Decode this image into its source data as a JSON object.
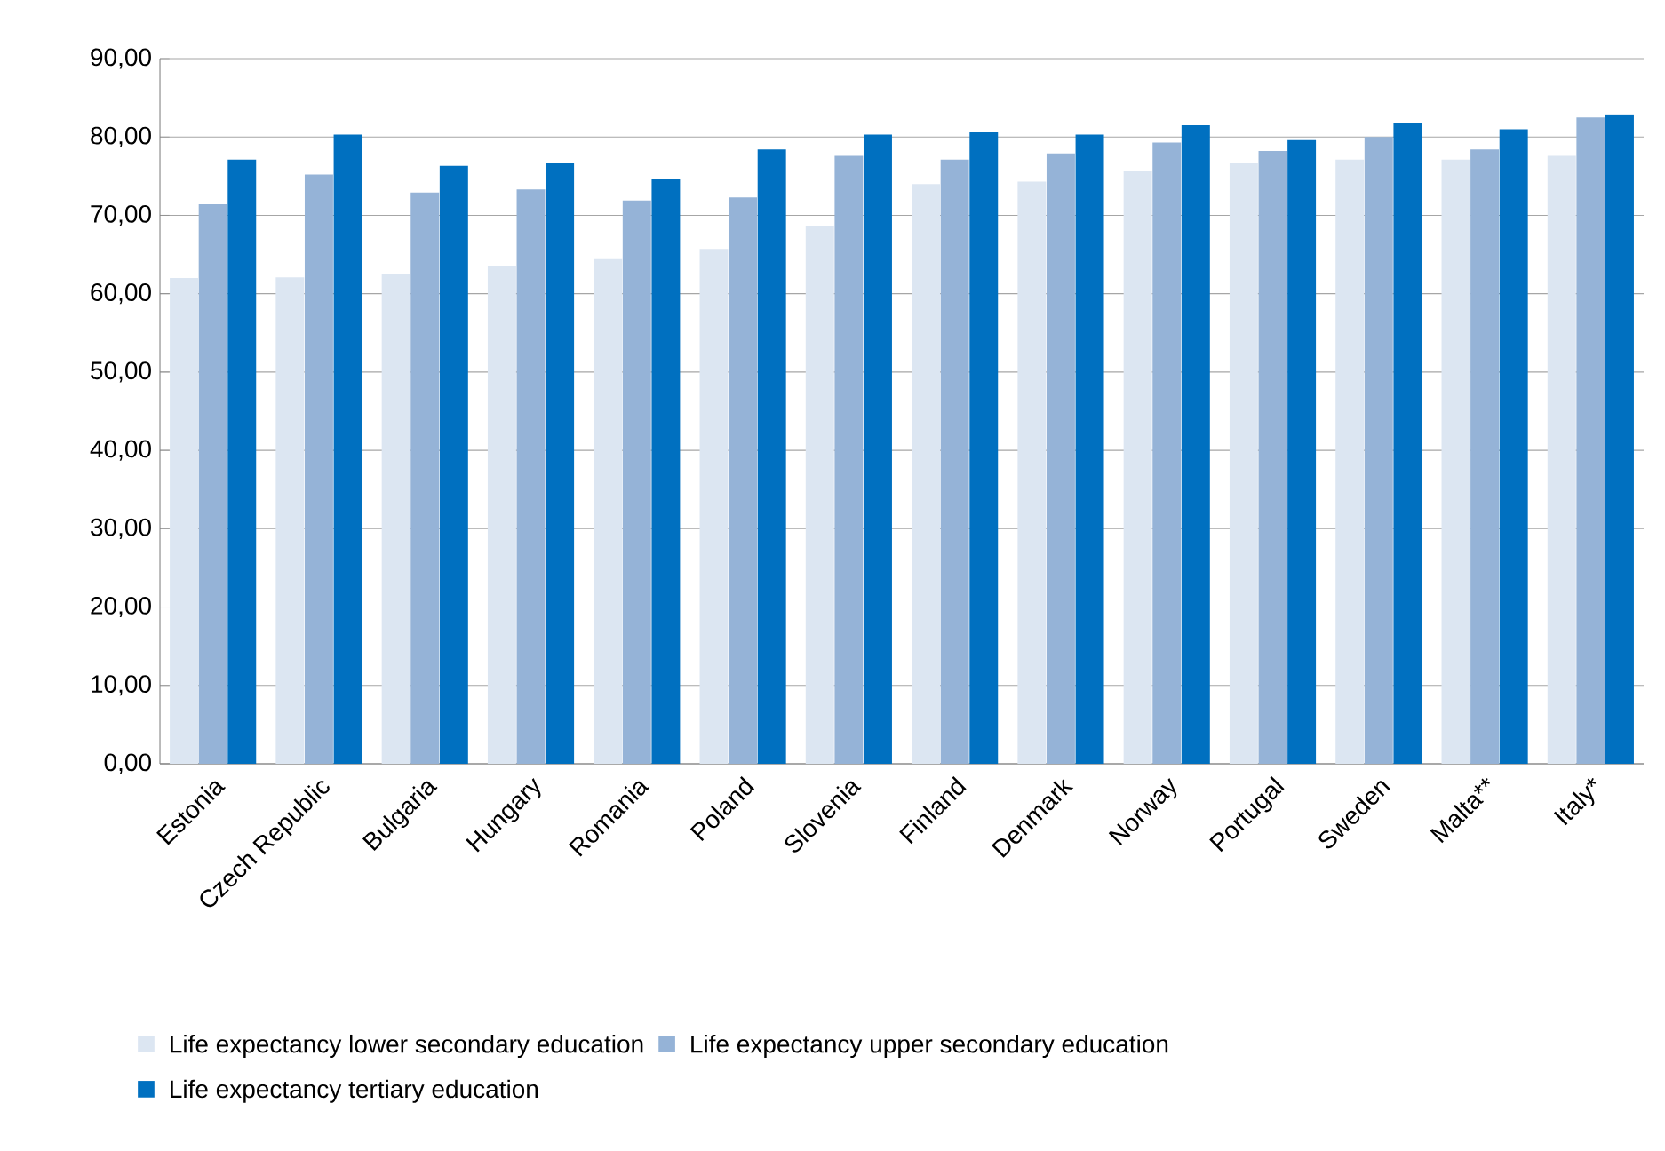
{
  "chart_data": {
    "type": "bar",
    "categories": [
      "Estonia",
      "Czech Republic",
      "Bulgaria",
      "Hungary",
      "Romania",
      "Poland",
      "Slovenia",
      "Finland",
      "Denmark",
      "Norway",
      "Portugal",
      "Sweden",
      "Malta**",
      "Italy*"
    ],
    "series": [
      {
        "name": "Life expectancy lower secondary education",
        "color": "#dce6f2",
        "values": [
          62.0,
          62.1,
          62.5,
          63.5,
          64.4,
          65.7,
          68.6,
          74.0,
          74.3,
          75.7,
          76.7,
          77.1,
          77.1,
          77.6
        ]
      },
      {
        "name": "Life expectancy upper secondary education",
        "color": "#95b3d7",
        "values": [
          71.4,
          75.2,
          72.9,
          73.3,
          71.9,
          72.3,
          77.6,
          77.1,
          77.9,
          79.3,
          78.2,
          80.0,
          78.4,
          82.5
        ]
      },
      {
        "name": "Life expectancy tertiary education",
        "color": "#0070c0",
        "values": [
          77.1,
          80.3,
          76.3,
          76.7,
          74.7,
          78.4,
          80.3,
          80.6,
          80.3,
          81.5,
          79.6,
          81.8,
          81.0,
          82.9
        ]
      }
    ],
    "ylim": [
      0,
      90
    ],
    "yticks": [
      {
        "value": 0,
        "label": "0,00"
      },
      {
        "value": 10,
        "label": "10,00"
      },
      {
        "value": 20,
        "label": "20,00"
      },
      {
        "value": 30,
        "label": "30,00"
      },
      {
        "value": 40,
        "label": "40,00"
      },
      {
        "value": 50,
        "label": "50,00"
      },
      {
        "value": 60,
        "label": "60,00"
      },
      {
        "value": 70,
        "label": "70,00"
      },
      {
        "value": 80,
        "label": "80,00"
      },
      {
        "value": 90,
        "label": "90,00"
      }
    ],
    "grid": "y",
    "legend": "bottom"
  }
}
